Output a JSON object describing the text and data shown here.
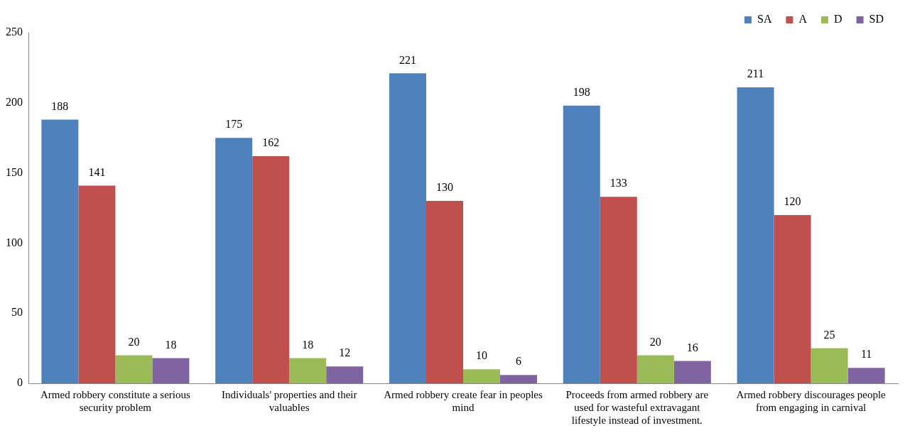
{
  "chart_data": {
    "type": "bar",
    "categories": [
      "Armed robbery constitute a serious security problem",
      "Individuals' properties and their valuables",
      "Armed robbery create fear in peoples mind",
      "Proceeds from armed robbery are used for wasteful extravagant lifestyle instead of investment.",
      "Armed robbery discourages people from engaging in carnival"
    ],
    "series": [
      {
        "name": "SA",
        "color": "#4f81bd",
        "values": [
          188,
          175,
          221,
          198,
          211
        ]
      },
      {
        "name": "A",
        "color": "#c0504d",
        "values": [
          141,
          162,
          130,
          133,
          120
        ]
      },
      {
        "name": "D",
        "color": "#9bbb59",
        "values": [
          20,
          18,
          10,
          20,
          25
        ]
      },
      {
        "name": "SD",
        "color": "#8064a2",
        "values": [
          18,
          12,
          6,
          16,
          11
        ]
      }
    ],
    "ylim": [
      0,
      250
    ],
    "yticks": [
      0,
      50,
      100,
      150,
      200,
      250
    ],
    "grid": false,
    "legend": "top right",
    "data_labels": true
  }
}
